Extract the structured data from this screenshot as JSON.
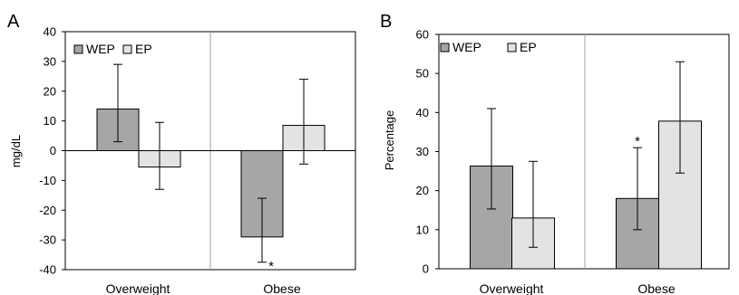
{
  "colors": {
    "WEP": "#a6a6a6",
    "EP": "#e3e3e3",
    "stroke": "#000000",
    "divider": "#a0a0a0"
  },
  "chart_data": [
    {
      "type": "bar",
      "panel": "A",
      "ylabel": "mg/dL",
      "ylim": [
        -40,
        40
      ],
      "yticks": [
        40,
        30,
        20,
        10,
        0,
        -10,
        -20,
        -30,
        -40
      ],
      "categories": [
        "Overweight",
        "Obese"
      ],
      "legend": [
        "WEP",
        "EP"
      ],
      "legend_position": "top-left",
      "series": [
        {
          "name": "WEP",
          "values": [
            14,
            -29
          ],
          "err_low": [
            3,
            -37.5
          ],
          "err_high": [
            29,
            -16
          ]
        },
        {
          "name": "EP",
          "values": [
            -5.5,
            8.5
          ],
          "err_low": [
            -13,
            -4.5
          ],
          "err_high": [
            9.5,
            24
          ]
        }
      ],
      "annotations": [
        {
          "text": "*",
          "series": "WEP",
          "category": "Obese",
          "at": -37.5
        }
      ]
    },
    {
      "type": "bar",
      "panel": "B",
      "ylabel": "Percentage",
      "ylim": [
        0,
        60
      ],
      "yticks": [
        60,
        50,
        40,
        30,
        20,
        10,
        0
      ],
      "categories": [
        "Overweight",
        "Obese"
      ],
      "legend": [
        "WEP",
        "EP"
      ],
      "legend_position": "top-left",
      "series": [
        {
          "name": "WEP",
          "values": [
            26.3,
            18
          ],
          "err_low": [
            15.3,
            10
          ],
          "err_high": [
            41,
            31
          ]
        },
        {
          "name": "EP",
          "values": [
            13,
            37.8
          ],
          "err_low": [
            5.5,
            24.5
          ],
          "err_high": [
            27.5,
            53
          ]
        }
      ],
      "annotations": [
        {
          "text": "*",
          "series": "WEP",
          "category": "Obese",
          "at": 31
        }
      ]
    }
  ]
}
